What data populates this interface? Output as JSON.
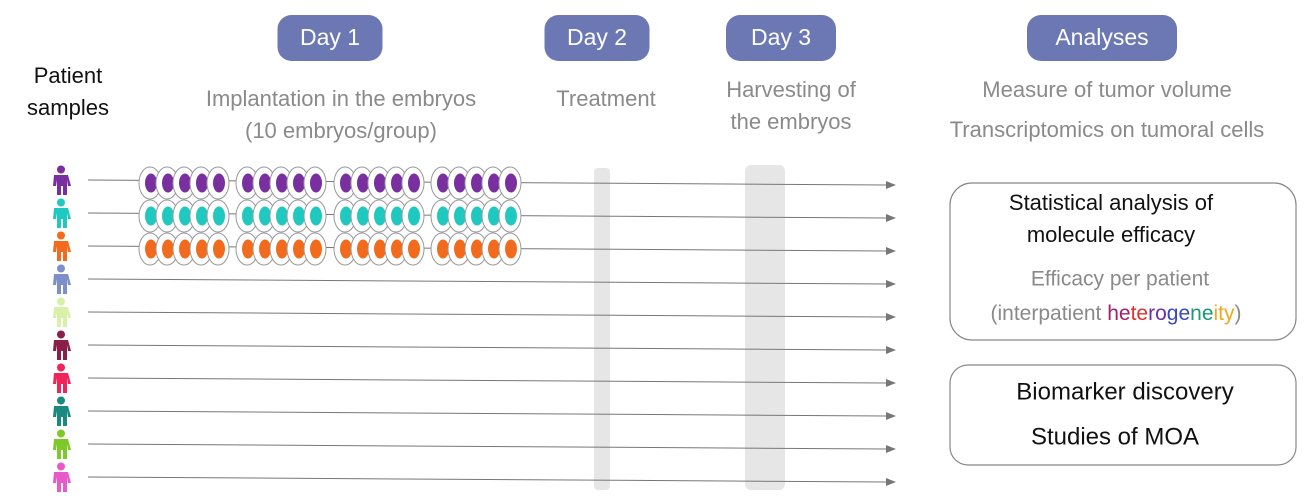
{
  "header": {
    "days": [
      "Day 1",
      "Day 2",
      "Day 3",
      "Analyses"
    ]
  },
  "patients": {
    "label": [
      "Patient",
      "samples"
    ],
    "colors": [
      "#7a2fa0",
      "#1fc9c0",
      "#f26a1b",
      "#7d8fc9",
      "#d8f0a8",
      "#8a1f4a",
      "#f0245a",
      "#1a8a80",
      "#7ec82a",
      "#e85ac8"
    ]
  },
  "steps": {
    "implantation": [
      "Implantation in the embryos",
      "(10 embryos/group)"
    ],
    "treatment": [
      "Treatment"
    ],
    "harvesting": [
      "Harvesting of",
      "the embryos"
    ],
    "analyses": [
      "Measure of tumor volume",
      "Transcriptomics on tumoral cells"
    ]
  },
  "box1": {
    "lines": [
      "Statistical analysis of",
      "molecule efficacy",
      "Efficacy per patient"
    ],
    "note": [
      {
        "text": "(interpatient ",
        "color": "#8a8a8a"
      },
      {
        "text": "he",
        "color": "#a0206e"
      },
      {
        "text": "te",
        "color": "#e0302a"
      },
      {
        "text": "ro",
        "color": "#7030a0"
      },
      {
        "text": "ge",
        "color": "#3a48c0"
      },
      {
        "text": "ne",
        "color": "#1a9a7a"
      },
      {
        "text": "ity",
        "color": "#f0a820"
      },
      {
        "text": ")",
        "color": "#8a8a8a"
      }
    ]
  },
  "box2": {
    "lines": [
      "Biomarker discovery",
      "Studies of MOA"
    ]
  }
}
